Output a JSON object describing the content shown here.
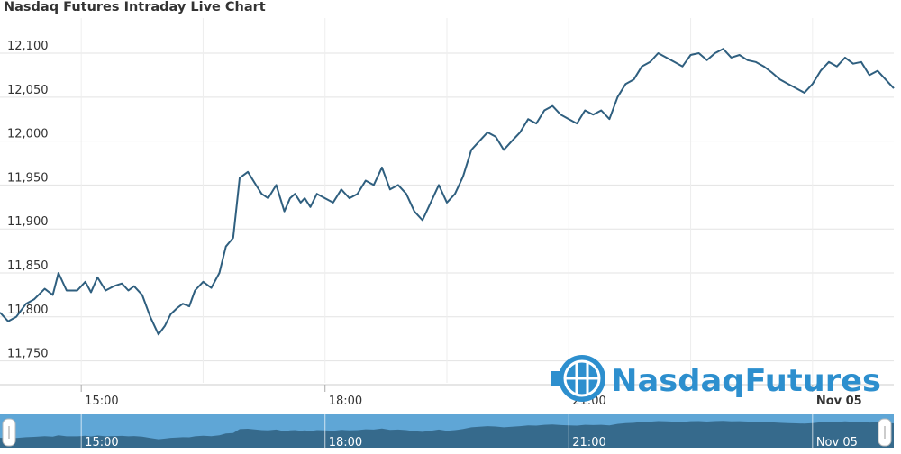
{
  "chart_data": {
    "type": "line",
    "title": "Nasdaq Futures Intraday Live Chart",
    "xlabel": "",
    "ylabel": "",
    "x_ticks": [
      "15:00",
      "18:00",
      "21:00",
      "Nov 05"
    ],
    "navigator_ticks": [
      "15:00",
      "18:00",
      "21:00",
      "Nov 05"
    ],
    "y_ticks": [
      "11,750",
      "11,800",
      "11,850",
      "11,900",
      "11,950",
      "12,000",
      "12,050",
      "12,100"
    ],
    "ylim": [
      11725,
      12140
    ],
    "x_unit": "hours since 14:00",
    "xlim": [
      0,
      11.0
    ],
    "grid": true,
    "series": [
      {
        "name": "",
        "color": "#2f5f7f",
        "x": [
          0.0,
          0.1,
          0.2,
          0.32,
          0.42,
          0.55,
          0.65,
          0.72,
          0.82,
          0.95,
          1.0,
          1.05,
          1.12,
          1.2,
          1.3,
          1.4,
          1.5,
          1.58,
          1.65,
          1.75,
          1.85,
          1.95,
          2.03,
          2.1,
          2.18,
          2.25,
          2.33,
          2.4,
          2.5,
          2.6,
          2.7,
          2.78,
          2.87,
          2.95,
          3.05,
          3.15,
          3.22,
          3.3,
          3.4,
          3.5,
          3.57,
          3.63,
          3.7,
          3.75,
          3.82,
          3.9,
          4.0,
          4.1,
          4.2,
          4.3,
          4.4,
          4.5,
          4.6,
          4.7,
          4.8,
          4.9,
          5.0,
          5.1,
          5.2,
          5.3,
          5.4,
          5.5,
          5.6,
          5.7,
          5.8,
          5.9,
          6.0,
          6.1,
          6.2,
          6.3,
          6.4,
          6.5,
          6.6,
          6.7,
          6.8,
          6.9,
          7.0,
          7.1,
          7.2,
          7.3,
          7.4,
          7.5,
          7.6,
          7.7,
          7.8,
          7.9,
          8.0,
          8.1,
          8.2,
          8.3,
          8.4,
          8.5,
          8.6,
          8.7,
          8.8,
          8.9,
          9.0,
          9.1,
          9.2,
          9.3,
          9.4,
          9.5,
          9.6,
          9.7,
          9.8,
          9.9,
          10.0,
          10.1,
          10.2,
          10.3,
          10.4,
          10.5,
          10.6,
          10.7,
          10.8,
          10.9,
          11.0
        ],
        "values": [
          11805,
          11795,
          11800,
          11815,
          11820,
          11832,
          11825,
          11850,
          11830,
          11830,
          11835,
          11840,
          11828,
          11845,
          11830,
          11835,
          11838,
          11830,
          11835,
          11825,
          11800,
          11780,
          11790,
          11803,
          11810,
          11815,
          11812,
          11830,
          11840,
          11833,
          11850,
          11880,
          11890,
          11958,
          11965,
          11950,
          11940,
          11935,
          11950,
          11920,
          11935,
          11940,
          11930,
          11935,
          11925,
          11940,
          11935,
          11930,
          11945,
          11935,
          11940,
          11955,
          11950,
          11970,
          11945,
          11950,
          11940,
          11920,
          11910,
          11930,
          11950,
          11930,
          11940,
          11960,
          11990,
          12000,
          12010,
          12005,
          11990,
          12000,
          12010,
          12025,
          12020,
          12035,
          12040,
          12030,
          12025,
          12020,
          12035,
          12030,
          12035,
          12025,
          12050,
          12065,
          12070,
          12085,
          12090,
          12100,
          12095,
          12090,
          12085,
          12098,
          12100,
          12092,
          12100,
          12105,
          12095,
          12098,
          12092,
          12090,
          12085,
          12078,
          12070,
          12065,
          12060,
          12055,
          12065,
          12080,
          12090,
          12085,
          12095,
          12088,
          12090,
          12075,
          12080,
          12070,
          12060
        ]
      }
    ]
  },
  "logo": {
    "text": "NasdaqFutures"
  }
}
